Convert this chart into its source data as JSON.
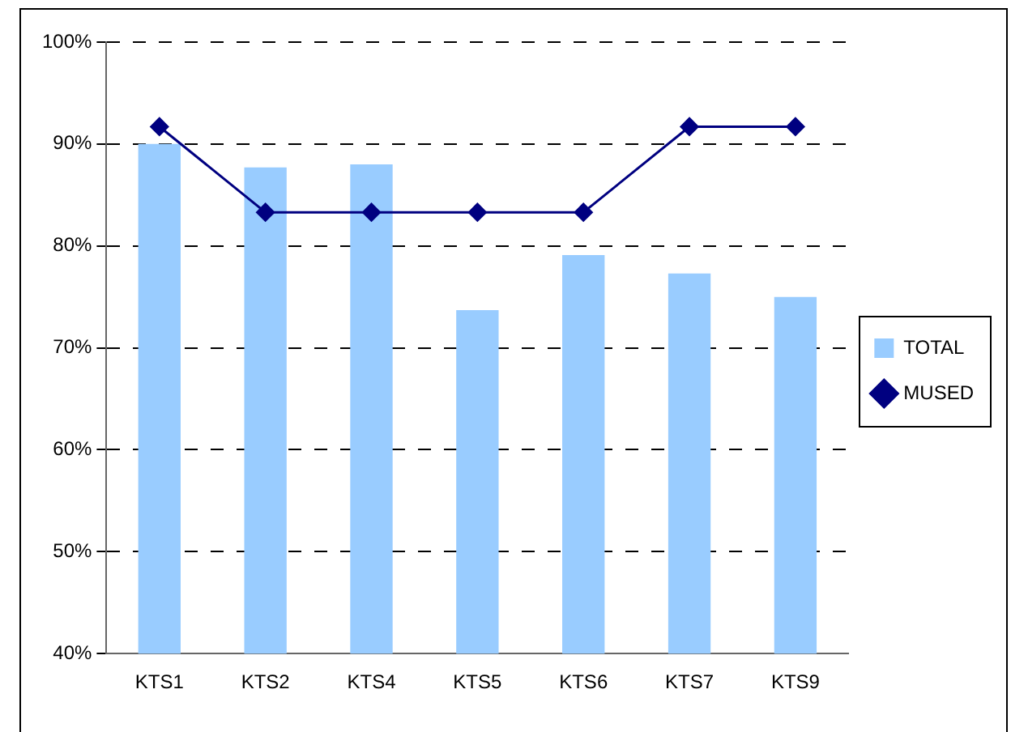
{
  "chart_data": {
    "type": "bar",
    "categories": [
      "KTS1",
      "KTS2",
      "KTS4",
      "KTS5",
      "KTS6",
      "KTS7",
      "KTS9"
    ],
    "series": [
      {
        "name": "TOTAL",
        "color": "#99ccff",
        "values": [
          90,
          87.7,
          88,
          73.7,
          79.1,
          77.3,
          75
        ]
      },
      {
        "name": "MUSED",
        "type": "line",
        "color": "#000080",
        "values": [
          91.7,
          83.3,
          83.3,
          83.3,
          83.3,
          91.7,
          91.7
        ],
        "marker": "diamond"
      }
    ],
    "ylim": [
      40,
      100
    ],
    "yticks": [
      {
        "value": 40,
        "label": "40%"
      },
      {
        "value": 50,
        "label": "50%"
      },
      {
        "value": 60,
        "label": "60%"
      },
      {
        "value": 70,
        "label": "70%"
      },
      {
        "value": 80,
        "label": "80%"
      },
      {
        "value": 90,
        "label": "90%"
      },
      {
        "value": 100,
        "label": "100%"
      }
    ],
    "grid": "y",
    "legend": "right"
  }
}
